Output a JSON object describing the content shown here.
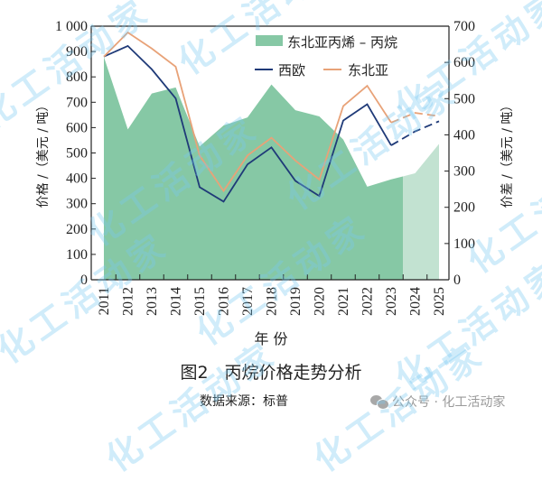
{
  "chart_data": {
    "type": "line+area",
    "title": "图2　丙烷价格走势分析",
    "source": "数据来源：标普",
    "xlabel": "年 份",
    "ylabel_left": "价格 /（美元 / 吨）",
    "ylabel_right": "价差 /（美元 / 吨）",
    "categories": [
      "2011",
      "2012",
      "2013",
      "2014",
      "2015",
      "2016",
      "2017",
      "2018",
      "2019",
      "2020",
      "2021",
      "2022",
      "2023",
      "2024",
      "2025"
    ],
    "ylim_left": [
      0,
      1000
    ],
    "yticks_left": [
      "0",
      "100",
      "200",
      "300",
      "400",
      "500",
      "600",
      "700",
      "800",
      "900",
      "1 000"
    ],
    "ylim_right": [
      0,
      700
    ],
    "yticks_right": [
      "0",
      "100",
      "200",
      "300",
      "400",
      "500",
      "600",
      "700"
    ],
    "forecast_from": "2023",
    "series": [
      {
        "name": "东北亚丙烯 – 丙烷",
        "type": "area",
        "axis": "right",
        "color": "#86c8a5",
        "forecast_color": "#c2e2d1",
        "values": [
          615,
          415,
          514,
          531,
          368,
          426,
          448,
          539,
          468,
          451,
          387,
          257,
          277,
          294,
          375
        ]
      },
      {
        "name": "西欧",
        "type": "line",
        "axis": "left",
        "color": "#1f3a78",
        "values": [
          880,
          922,
          830,
          715,
          365,
          308,
          455,
          522,
          390,
          330,
          628,
          692,
          530,
          585,
          625
        ]
      },
      {
        "name": "东北亚",
        "type": "line",
        "axis": "left",
        "color": "#e8a278",
        "values": [
          880,
          975,
          912,
          840,
          490,
          350,
          490,
          560,
          470,
          395,
          685,
          765,
          620,
          658,
          645
        ]
      }
    ],
    "legend_position": "upper right",
    "grid": false
  },
  "legend": {
    "area_label": "东北亚丙烯 – 丙烷",
    "line1_label": "西欧",
    "line2_label": "东北亚"
  },
  "axes": {
    "x_title": "年 份",
    "left_title": "价格 /（美元 / 吨）",
    "right_title": "价差 /（美元 / 吨）"
  },
  "caption": {
    "figure_number": "图2",
    "figure_title": "丙烷价格走势分析",
    "source": "数据来源：标普"
  },
  "branding": {
    "label": "公众号 · 化工活动家",
    "icon": "wechat-icon"
  },
  "watermark_text": "化工活动家"
}
